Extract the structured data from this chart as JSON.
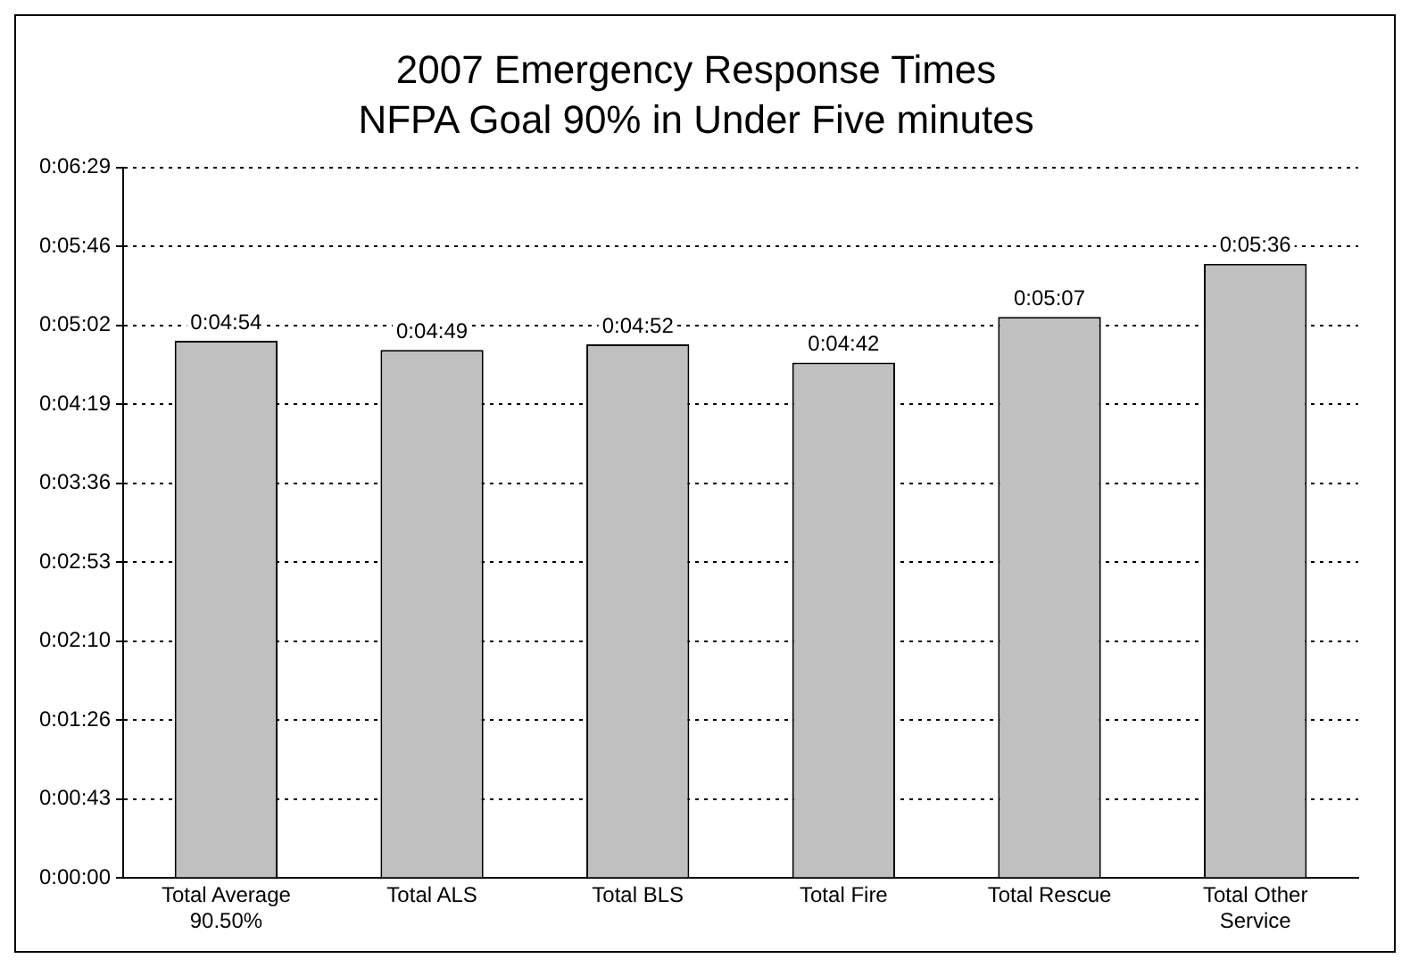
{
  "chart_data": {
    "type": "bar",
    "title": "2007 Emergency Response Times",
    "subtitle": "NFPA Goal 90% in Under Five minutes",
    "categories": [
      "Total Average 90.50%",
      "Total ALS",
      "Total BLS",
      "Total Fire",
      "Total Rescue",
      "Total Other Service"
    ],
    "values": [
      294,
      289,
      292,
      282,
      307,
      336
    ],
    "value_labels": [
      "0:04:54",
      "0:04:49",
      "0:04:52",
      "0:04:42",
      "0:05:07",
      "0:05:36"
    ],
    "color": "#c0c0c0",
    "ylim": [
      0,
      388.8
    ],
    "yticks": [
      {
        "value": 0,
        "label": "0:00:00"
      },
      {
        "value": 43.2,
        "label": "0:00:43"
      },
      {
        "value": 86.4,
        "label": "0:01:26"
      },
      {
        "value": 129.6,
        "label": "0:02:10"
      },
      {
        "value": 172.8,
        "label": "0:02:53"
      },
      {
        "value": 216,
        "label": "0:03:36"
      },
      {
        "value": 259.2,
        "label": "0:04:19"
      },
      {
        "value": 302.4,
        "label": "0:05:02"
      },
      {
        "value": 345.6,
        "label": "0:05:46"
      },
      {
        "value": 388.8,
        "label": "0:06:29"
      }
    ],
    "grid": "y"
  }
}
